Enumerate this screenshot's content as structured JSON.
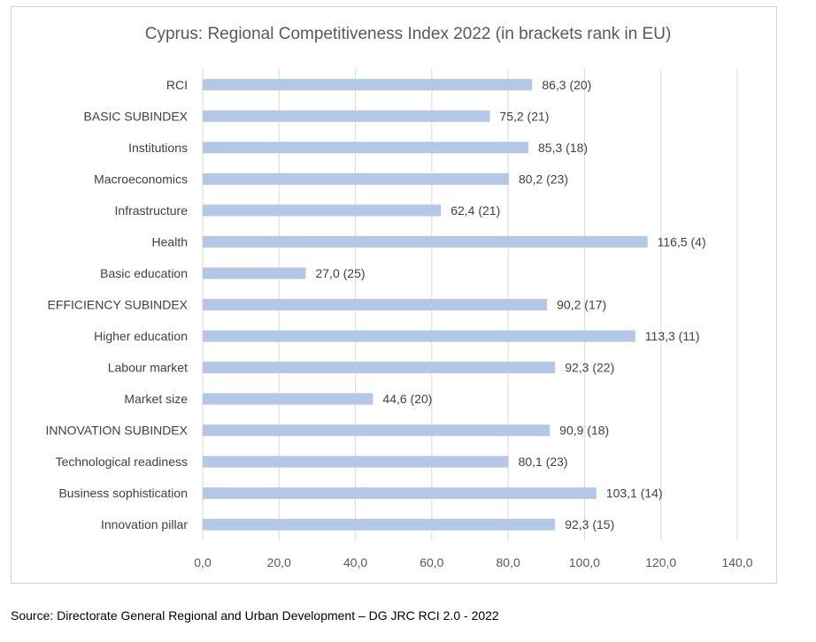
{
  "chart_data": {
    "type": "bar",
    "orientation": "horizontal",
    "title": "Cyprus: Regional Competitiveness Index 2022 (in brackets rank in EU)",
    "categories": [
      "RCI",
      "BASIC SUBINDEX",
      "Institutions",
      "Macroeconomics",
      "Infrastructure",
      "Health",
      "Basic education",
      "EFFICIENCY SUBINDEX",
      "Higher education",
      "Labour market",
      "Market size",
      "INNOVATION SUBINDEX",
      "Technological readiness",
      "Business sophistication",
      "Innovation pillar"
    ],
    "values": [
      86.3,
      75.2,
      85.3,
      80.2,
      62.4,
      116.5,
      27.0,
      90.2,
      113.3,
      92.3,
      44.6,
      90.9,
      80.1,
      103.1,
      92.3
    ],
    "data_labels": [
      "86,3 (20)",
      "75,2 (21)",
      "85,3 (18)",
      "80,2 (23)",
      "62,4 (21)",
      "116,5 (4)",
      "27,0 (25)",
      "90,2 (17)",
      "113,3 (11)",
      "92,3 (22)",
      "44,6 (20)",
      "90,9 (18)",
      "80,1 (23)",
      "103,1 (14)",
      "92,3 (15)"
    ],
    "xlim": [
      0,
      140
    ],
    "xticks": [
      0,
      20,
      40,
      60,
      80,
      100,
      120,
      140
    ],
    "xtick_labels": [
      "0,0",
      "20,0",
      "40,0",
      "60,0",
      "80,0",
      "100,0",
      "120,0",
      "140,0"
    ],
    "grid": "vertical",
    "bar_color": "#b4c7e7"
  },
  "source": "Source: Directorate General Regional and Urban Development – DG JRC RCI 2.0 - 2022"
}
